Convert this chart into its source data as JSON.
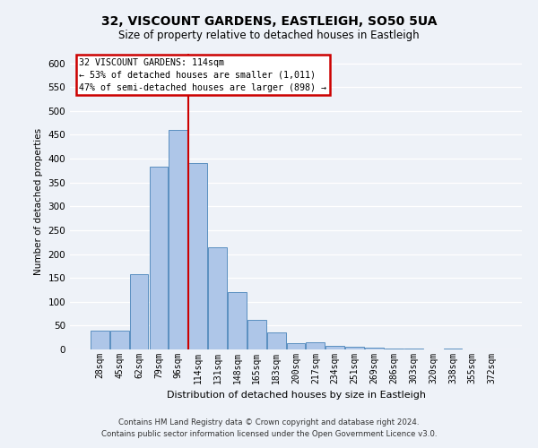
{
  "title1": "32, VISCOUNT GARDENS, EASTLEIGH, SO50 5UA",
  "title2": "Size of property relative to detached houses in Eastleigh",
  "xlabel": "Distribution of detached houses by size in Eastleigh",
  "ylabel": "Number of detached properties",
  "categories": [
    "28sqm",
    "45sqm",
    "62sqm",
    "79sqm",
    "96sqm",
    "114sqm",
    "131sqm",
    "148sqm",
    "165sqm",
    "183sqm",
    "200sqm",
    "217sqm",
    "234sqm",
    "251sqm",
    "269sqm",
    "286sqm",
    "303sqm",
    "320sqm",
    "338sqm",
    "355sqm",
    "372sqm"
  ],
  "values": [
    40,
    40,
    158,
    383,
    460,
    390,
    215,
    120,
    62,
    35,
    14,
    15,
    8,
    5,
    3,
    2,
    1,
    0,
    1,
    0,
    0
  ],
  "bar_color": "#aec6e8",
  "bar_edge_color": "#5a8fc0",
  "highlight_index": 5,
  "vline_color": "#cc0000",
  "ylim": [
    0,
    620
  ],
  "yticks": [
    0,
    50,
    100,
    150,
    200,
    250,
    300,
    350,
    400,
    450,
    500,
    550,
    600
  ],
  "annotation_title": "32 VISCOUNT GARDENS: 114sqm",
  "annotation_line1": "← 53% of detached houses are smaller (1,011)",
  "annotation_line2": "47% of semi-detached houses are larger (898) →",
  "annotation_box_color": "#ffffff",
  "annotation_box_edge": "#cc0000",
  "footer1": "Contains HM Land Registry data © Crown copyright and database right 2024.",
  "footer2": "Contains public sector information licensed under the Open Government Licence v3.0.",
  "bg_color": "#eef2f8",
  "grid_color": "#ffffff"
}
